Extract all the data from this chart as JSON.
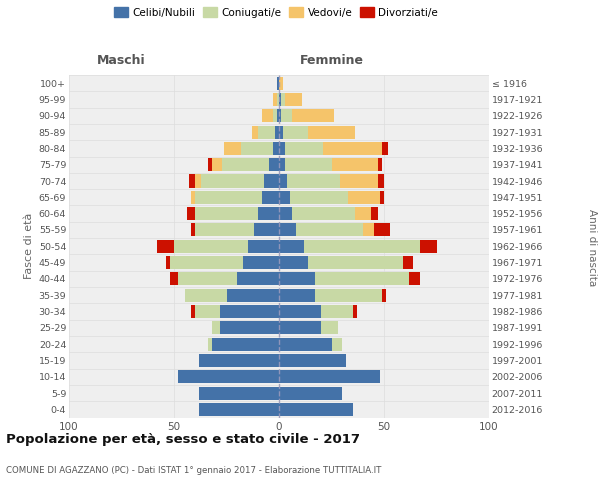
{
  "age_groups": [
    "0-4",
    "5-9",
    "10-14",
    "15-19",
    "20-24",
    "25-29",
    "30-34",
    "35-39",
    "40-44",
    "45-49",
    "50-54",
    "55-59",
    "60-64",
    "65-69",
    "70-74",
    "75-79",
    "80-84",
    "85-89",
    "90-94",
    "95-99",
    "100+"
  ],
  "birth_years": [
    "2012-2016",
    "2007-2011",
    "2002-2006",
    "1997-2001",
    "1992-1996",
    "1987-1991",
    "1982-1986",
    "1977-1981",
    "1972-1976",
    "1967-1971",
    "1962-1966",
    "1957-1961",
    "1952-1956",
    "1947-1951",
    "1942-1946",
    "1937-1941",
    "1932-1936",
    "1927-1931",
    "1922-1926",
    "1917-1921",
    "≤ 1916"
  ],
  "colors": {
    "celibi": "#4472a8",
    "coniugati": "#c8d9a5",
    "vedovi": "#f5c46a",
    "divorziati": "#cc1100"
  },
  "maschi": {
    "celibi": [
      38,
      38,
      48,
      38,
      32,
      28,
      28,
      25,
      20,
      17,
      15,
      12,
      10,
      8,
      7,
      5,
      3,
      2,
      1,
      0,
      1
    ],
    "coniugati": [
      0,
      0,
      0,
      0,
      2,
      4,
      12,
      20,
      28,
      35,
      35,
      28,
      30,
      32,
      30,
      22,
      15,
      8,
      2,
      1,
      0
    ],
    "vedovi": [
      0,
      0,
      0,
      0,
      0,
      0,
      0,
      0,
      0,
      0,
      0,
      0,
      0,
      2,
      3,
      5,
      8,
      3,
      5,
      2,
      0
    ],
    "divorziati": [
      0,
      0,
      0,
      0,
      0,
      0,
      2,
      0,
      4,
      2,
      8,
      2,
      4,
      0,
      3,
      2,
      0,
      0,
      0,
      0,
      0
    ]
  },
  "femmine": {
    "celibi": [
      35,
      30,
      48,
      32,
      25,
      20,
      20,
      17,
      17,
      14,
      12,
      8,
      6,
      5,
      4,
      3,
      3,
      2,
      1,
      1,
      0
    ],
    "coniugati": [
      0,
      0,
      0,
      0,
      5,
      8,
      15,
      32,
      45,
      45,
      55,
      32,
      30,
      28,
      25,
      22,
      18,
      12,
      5,
      2,
      0
    ],
    "vedovi": [
      0,
      0,
      0,
      0,
      0,
      0,
      0,
      0,
      0,
      0,
      0,
      5,
      8,
      15,
      18,
      22,
      28,
      22,
      20,
      8,
      2
    ],
    "divorziati": [
      0,
      0,
      0,
      0,
      0,
      0,
      2,
      2,
      5,
      5,
      8,
      8,
      3,
      2,
      3,
      2,
      3,
      0,
      0,
      0,
      0
    ]
  },
  "title": "Popolazione per età, sesso e stato civile - 2017",
  "subtitle": "COMUNE DI AGAZZANO (PC) - Dati ISTAT 1° gennaio 2017 - Elaborazione TUTTITALIA.IT",
  "xlabel_maschi": "Maschi",
  "xlabel_femmine": "Femmine",
  "ylabel_left": "Fasce di età",
  "ylabel_right": "Anni di nascita",
  "xlim": 100,
  "legend_labels": [
    "Celibi/Nubili",
    "Coniugati/e",
    "Vedovi/e",
    "Divorziati/e"
  ],
  "bg_color": "#efefef"
}
